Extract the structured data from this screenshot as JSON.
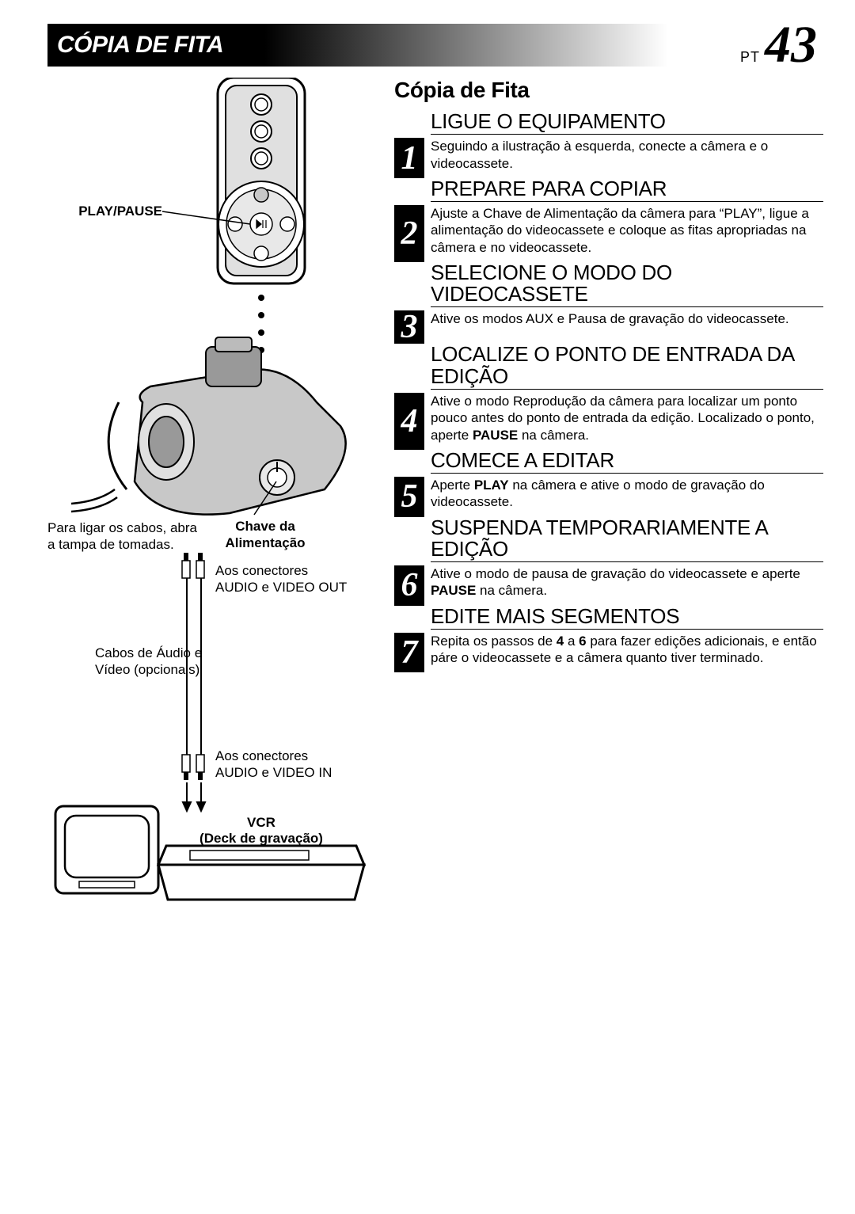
{
  "header": {
    "title": "CÓPIA DE FITA",
    "page_prefix": "PT",
    "page_number": "43"
  },
  "section_title": "Cópia de Fita",
  "steps": [
    {
      "n": "1",
      "head": "LIGUE O EQUIPAMENTO",
      "body": "Seguindo a ilustração à esquerda, conecte a câmera e o videocassete."
    },
    {
      "n": "2",
      "head": "PREPARE PARA COPIAR",
      "body": "Ajuste a Chave de Alimentação da câmera para “PLAY”, ligue a alimentação do videocassete e coloque as fitas apropriadas na câmera e no videocassete."
    },
    {
      "n": "3",
      "head": "SELECIONE O MODO DO VIDEOCASSETE",
      "body": "Ative os modos AUX e Pausa de gravação do videocassete."
    },
    {
      "n": "4",
      "head": "LOCALIZE O PONTO DE ENTRADA DA EDIÇÃO",
      "body": "Ative o modo Reprodução da câmera para localizar um ponto pouco antes do ponto de entrada da edição. Localizado o ponto, aperte <b>PAUSE</b> na câmera."
    },
    {
      "n": "5",
      "head": "COMECE A EDITAR",
      "body": "Aperte <b>PLAY</b> na câmera e ative o modo de gravação do videocassete."
    },
    {
      "n": "6",
      "head": "SUSPENDA TEMPORARIAMENTE A EDIÇÃO",
      "body": "Ative o modo de pausa de gravação do videocassete e aperte <b>PAUSE</b> na câmera."
    },
    {
      "n": "7",
      "head": "EDITE MAIS SEGMENTOS",
      "body": "Repita os passos de <b>4</b> a <b>6</b> para fazer edições adicionais, e então páre o videocassete e a câmera quanto tiver terminado."
    }
  ],
  "diagram_labels": {
    "play_pause": "PLAY/PAUSE",
    "cabos_note": "Para ligar os cabos, abra a tampa de tomadas.",
    "chave": "Chave da Alimentação",
    "out_connectors": "Aos conectores AUDIO e VIDEO OUT",
    "cables": "Cabos de Áudio e Vídeo (opcionais)",
    "in_connectors": "Aos conectores AUDIO e VIDEO IN",
    "vcr": "VCR",
    "deck": "(Deck de gravação)"
  },
  "colors": {
    "black": "#000000",
    "white": "#ffffff",
    "grey_fill": "#c8c8c8",
    "grey_light": "#e0e0e0"
  }
}
